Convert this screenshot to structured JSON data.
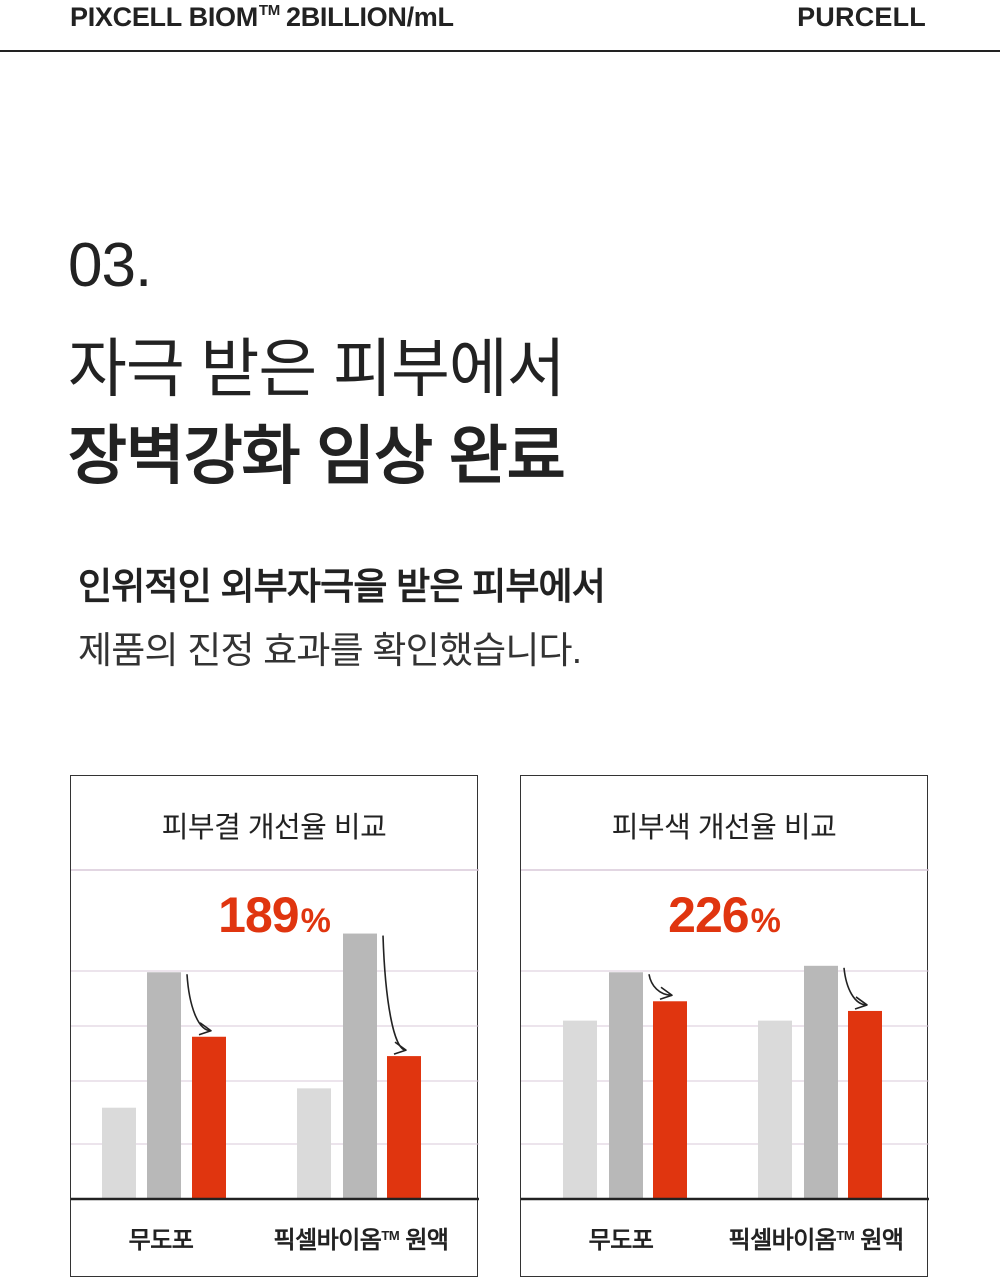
{
  "header": {
    "brand_left": "PIXCELL BIOM",
    "brand_left_tm": "TM",
    "brand_left_suffix": "2BILLION/mL",
    "brand_right": "PURCELL"
  },
  "section": {
    "number": "03.",
    "headline_line1": "자극 받은 피부에서",
    "headline_line2": "장벽강화 임상 완료",
    "sub_line1": "인위적인 외부자극을 받은 피부에서",
    "sub_line2": "제품의 진정 효과를 확인했습니다."
  },
  "colors": {
    "accent": "#e0350f",
    "bar_light": "#dadada",
    "bar_mid": "#b8b8b8",
    "grid": "#d9c8d9",
    "text": "#222222"
  },
  "chart_data": [
    {
      "type": "bar",
      "title": "피부결 개선율 비교",
      "highlight_value": "189",
      "highlight_unit": "%",
      "categories": [
        {
          "label": "무도포",
          "tm": ""
        },
        {
          "label": "픽셀바이옴",
          "tm": "TM",
          "suffix": " 원액"
        }
      ],
      "series": [
        {
          "values": [
            14,
            17
          ],
          "color": "#dadada"
        },
        {
          "values": [
            35,
            41
          ],
          "color": "#b8b8b8"
        },
        {
          "values": [
            25,
            22
          ],
          "color": "#e0350f"
        }
      ],
      "ylim": [
        0,
        40
      ],
      "grid": true,
      "arrows": true
    },
    {
      "type": "bar",
      "title": "피부색 개선율 비교",
      "highlight_value": "226",
      "highlight_unit": "%",
      "categories": [
        {
          "label": "무도포",
          "tm": ""
        },
        {
          "label": "픽셀바이옴",
          "tm": "TM",
          "suffix": " 원액"
        }
      ],
      "series": [
        {
          "values": [
            27.5,
            27.5
          ],
          "color": "#dadada"
        },
        {
          "values": [
            35,
            36
          ],
          "color": "#b8b8b8"
        },
        {
          "values": [
            30.5,
            29
          ],
          "color": "#e0350f"
        }
      ],
      "ylim": [
        0,
        40
      ],
      "grid": true,
      "arrows": true
    }
  ]
}
